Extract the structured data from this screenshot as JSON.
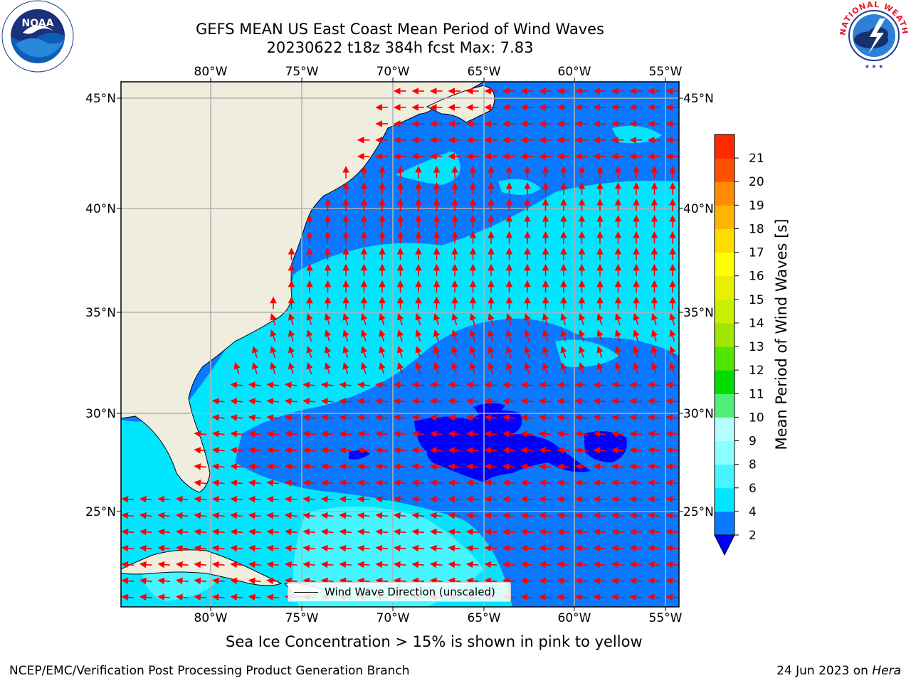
{
  "title": {
    "line1": "GEFS MEAN US East Coast Mean Period of Wind Waves",
    "line2": "20230622 t18z 384h fcst   Max: 7.83"
  },
  "logos": {
    "left": "noaa-logo",
    "right": "nws-logo",
    "nws_ring_text": "NATIONAL WEATHER SERVICE"
  },
  "map": {
    "projection": "plate-carree",
    "lon_range": [
      -85,
      -54.5
    ],
    "lat_range": [
      20.3,
      46
    ],
    "lon_ticks": [
      "80°W",
      "75°W",
      "70°W",
      "65°W",
      "60°W",
      "55°W"
    ],
    "lat_ticks": [
      "45°N",
      "40°N",
      "35°N",
      "30°N",
      "25°N"
    ],
    "grid": true,
    "land_color": "#efedde",
    "legend": {
      "label": "Wind Wave Direction (unscaled)",
      "placement": "bottom-center"
    },
    "arrow_color": "#ff0000"
  },
  "colorbar": {
    "label": "Mean Period of Wind Waves [s]",
    "ticks": [
      "2",
      "4",
      "6",
      "8",
      "9",
      "10",
      "11",
      "12",
      "13",
      "14",
      "15",
      "16",
      "17",
      "18",
      "19",
      "20",
      "21"
    ],
    "colors": [
      "#0a78ff",
      "#00e6ff",
      "#46f5ff",
      "#8cffff",
      "#b4ffff",
      "#50f078",
      "#00dc00",
      "#50e600",
      "#a0e600",
      "#c8f000",
      "#e6f000",
      "#ffff00",
      "#ffdc00",
      "#ffb400",
      "#ff8c00",
      "#ff5000",
      "#ff2800",
      "#ff0000"
    ],
    "under_color": "#0000ff"
  },
  "footer": {
    "ice_note": "Sea Ice Concentration > 15% is shown in pink to yellow",
    "left": "NCEP/EMC/Verification Post Processing Product Generation Branch",
    "right_date": "24 Jun 2023 on ",
    "right_host": "Hera"
  }
}
